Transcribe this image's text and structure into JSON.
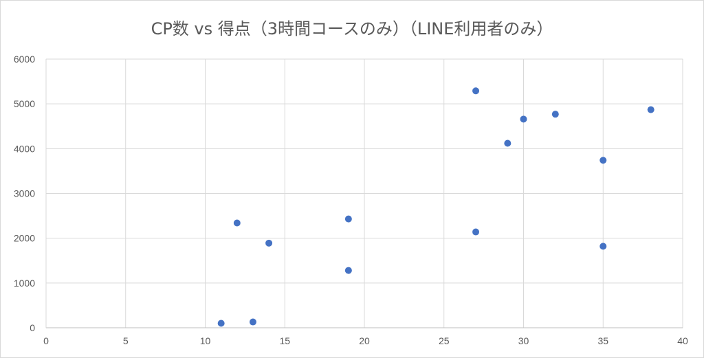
{
  "chart_data": {
    "type": "scatter",
    "title": "CP数 vs 得点（3時間コースのみ）（LINE利用者のみ）",
    "xlabel": "",
    "ylabel": "",
    "xlim": [
      0,
      40
    ],
    "ylim": [
      0,
      6000
    ],
    "x_ticks": [
      0,
      5,
      10,
      15,
      20,
      25,
      30,
      35,
      40
    ],
    "y_ticks": [
      0,
      1000,
      2000,
      3000,
      4000,
      5000,
      6000
    ],
    "grid": true,
    "legend": "none",
    "marker_color": "#4472c4",
    "grid_color": "#d9d9d9",
    "points": [
      {
        "x": 11,
        "y": 100
      },
      {
        "x": 12,
        "y": 2340
      },
      {
        "x": 13,
        "y": 130
      },
      {
        "x": 14,
        "y": 1890
      },
      {
        "x": 19,
        "y": 2430
      },
      {
        "x": 19,
        "y": 1280
      },
      {
        "x": 27,
        "y": 5290
      },
      {
        "x": 27,
        "y": 2140
      },
      {
        "x": 29,
        "y": 4120
      },
      {
        "x": 30,
        "y": 4660
      },
      {
        "x": 32,
        "y": 4770
      },
      {
        "x": 35,
        "y": 3740
      },
      {
        "x": 35,
        "y": 1820
      },
      {
        "x": 38,
        "y": 4870
      }
    ]
  }
}
